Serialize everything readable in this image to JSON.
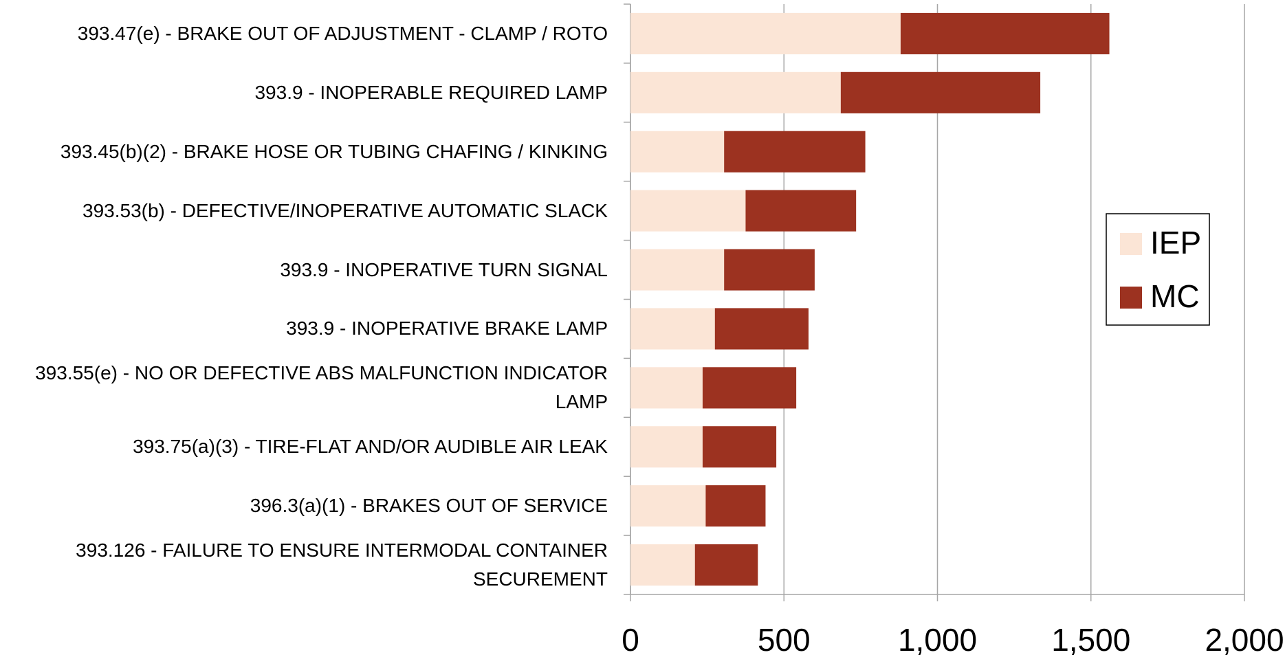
{
  "chart_data": {
    "type": "stacked-bar-horizontal",
    "categories": [
      "393.47(e) - BRAKE OUT OF ADJUSTMENT - CLAMP / ROTO",
      "393.9 - INOPERABLE REQUIRED LAMP",
      "393.45(b)(2) - BRAKE HOSE OR TUBING CHAFING / KINKING",
      "393.53(b) - DEFECTIVE/INOPERATIVE AUTOMATIC SLACK",
      "393.9 - INOPERATIVE TURN SIGNAL",
      "393.9 - INOPERATIVE BRAKE LAMP",
      "393.55(e) - NO OR DEFECTIVE ABS MALFUNCTION INDICATOR LAMP",
      "393.75(a)(3) - TIRE-FLAT AND/OR AUDIBLE AIR LEAK",
      "396.3(a)(1) - BRAKES OUT OF SERVICE",
      "393.126 - FAILURE TO ENSURE INTERMODAL CONTAINER SECUREMENT"
    ],
    "series": [
      {
        "name": "IEP",
        "color": "#fbe5d6",
        "values": [
          880,
          685,
          305,
          375,
          305,
          275,
          235,
          235,
          245,
          210
        ]
      },
      {
        "name": "MC",
        "color": "#9c3220",
        "values": [
          680,
          650,
          460,
          360,
          295,
          305,
          305,
          240,
          195,
          205
        ]
      }
    ],
    "xlim": [
      0,
      2000
    ],
    "xticks": [
      0,
      500,
      {
        "value": 1000,
        "label": "1,000"
      },
      {
        "value": 1500,
        "label": "1,500"
      },
      {
        "value": 2000,
        "label": "2,000"
      }
    ],
    "grid": true,
    "legend": "right"
  }
}
